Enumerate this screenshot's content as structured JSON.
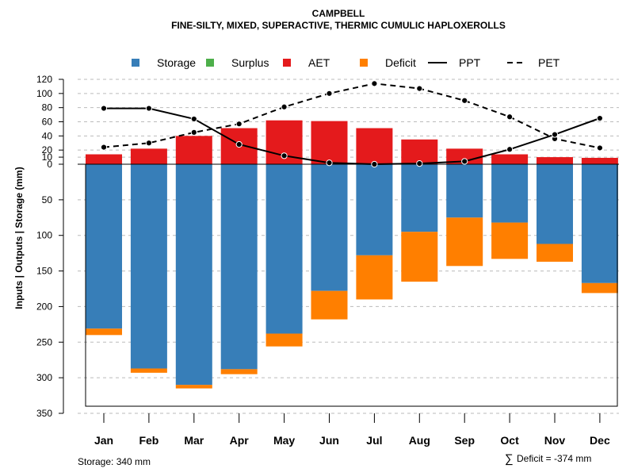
{
  "chart_data": {
    "type": "bar",
    "title": "CAMPBELL",
    "subtitle": "FINE-SILTY, MIXED, SUPERACTIVE, THERMIC CUMULIC HAPLOXEROLLS",
    "ylabel": "Inputs | Outputs | Storage    (mm)",
    "upper_ticks": [
      0,
      10,
      20,
      40,
      60,
      80,
      100,
      120
    ],
    "lower_ticks": [
      50,
      100,
      150,
      200,
      250,
      300,
      350
    ],
    "upper_ylim": [
      0,
      120
    ],
    "lower_ylim": [
      0,
      350
    ],
    "categories": [
      "Jan",
      "Feb",
      "Mar",
      "Apr",
      "May",
      "Jun",
      "Jul",
      "Aug",
      "Sep",
      "Oct",
      "Nov",
      "Dec"
    ],
    "legend": [
      {
        "name": "Storage",
        "kind": "box",
        "color": "#377EB8"
      },
      {
        "name": "Surplus",
        "kind": "box",
        "color": "#4DAF4A"
      },
      {
        "name": "AET",
        "kind": "box",
        "color": "#E41A1C"
      },
      {
        "name": "Deficit",
        "kind": "box",
        "color": "#FF7F00"
      },
      {
        "name": "PPT",
        "kind": "solid",
        "color": "#000000"
      },
      {
        "name": "PET",
        "kind": "dashed",
        "color": "#000000"
      }
    ],
    "series": [
      {
        "name": "AET",
        "values": [
          14,
          22,
          40,
          51,
          62,
          61,
          51,
          35,
          22,
          14,
          10,
          9
        ]
      },
      {
        "name": "Storage",
        "values": [
          231,
          287,
          310,
          288,
          238,
          178,
          128,
          95,
          75,
          82,
          112,
          167
        ]
      },
      {
        "name": "Deficit",
        "values": [
          9,
          6,
          5,
          7,
          18,
          40,
          62,
          70,
          68,
          51,
          25,
          14
        ]
      },
      {
        "name": "Surplus",
        "values": [
          0,
          0,
          0,
          0,
          0,
          0,
          0,
          0,
          0,
          0,
          0,
          0
        ]
      },
      {
        "name": "PPT",
        "values": [
          79,
          79,
          64,
          28,
          12,
          2,
          0,
          1,
          4,
          21,
          42,
          65
        ]
      },
      {
        "name": "PET",
        "values": [
          24,
          30,
          45,
          57,
          81,
          100,
          114,
          107,
          90,
          67,
          36,
          23
        ]
      }
    ],
    "storage_capacity": 340,
    "storage_label": "Storage: 340 mm",
    "deficit_label": "Deficit = -374 mm",
    "deficit_symbol": "∑"
  }
}
